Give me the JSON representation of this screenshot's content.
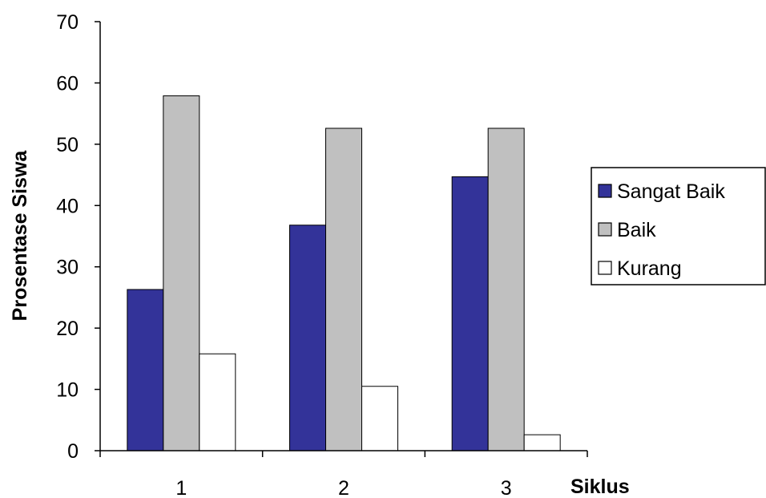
{
  "chart_data": {
    "type": "bar",
    "title": "",
    "xlabel": "Siklus",
    "ylabel": "Prosentase Siswa",
    "categories": [
      "1",
      "2",
      "3"
    ],
    "series": [
      {
        "name": "Sangat Baik",
        "values": [
          26.3,
          36.8,
          44.7
        ],
        "color": "#333399"
      },
      {
        "name": "Baik",
        "values": [
          57.9,
          52.6,
          52.6
        ],
        "color": "#c0c0c0"
      },
      {
        "name": "Kurang",
        "values": [
          15.8,
          10.5,
          2.6
        ],
        "color": "#ffffff"
      }
    ],
    "ylim": [
      0,
      70
    ],
    "yticks": [
      "0",
      "10",
      "20",
      "30",
      "40",
      "50",
      "60",
      "70"
    ],
    "grid": false,
    "legend_position": "right"
  }
}
